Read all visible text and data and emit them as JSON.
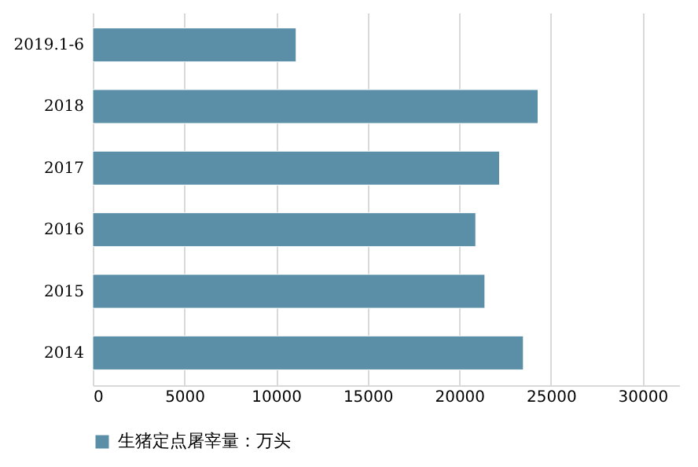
{
  "chart_data": {
    "type": "bar",
    "orientation": "horizontal",
    "categories": [
      "2019.1-6",
      "2018",
      "2017",
      "2016",
      "2015",
      "2014"
    ],
    "series": [
      {
        "name": "生猪定点屠宰量：万头",
        "color": "#5b8fa8",
        "values": [
          11100,
          24300,
          22200,
          20900,
          21400,
          23500
        ]
      }
    ],
    "xlim": [
      0,
      32000
    ],
    "xticks": [
      0,
      5000,
      10000,
      15000,
      20000,
      25000,
      30000
    ],
    "grid": "x",
    "legend": "bottom"
  }
}
